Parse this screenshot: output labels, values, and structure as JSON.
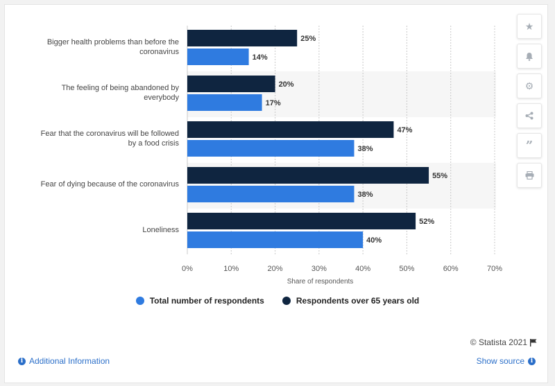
{
  "toolbar": {
    "icons": [
      "star-icon",
      "bell-icon",
      "gear-icon",
      "share-icon",
      "quote-icon",
      "print-icon"
    ]
  },
  "chart_data": {
    "type": "bar",
    "orientation": "horizontal",
    "categories": [
      [
        "Bigger health problems than before the",
        "coronavirus"
      ],
      [
        "The feeling of being abandoned by",
        "everybody"
      ],
      [
        "Fear that the coronavirus will be followed",
        "by a food crisis"
      ],
      [
        "Fear of dying because of the coronavirus"
      ],
      [
        "Loneliness"
      ]
    ],
    "series": [
      {
        "name": "Respondents over 65 years old",
        "color": "#0f2540",
        "values": [
          25,
          20,
          47,
          55,
          52
        ]
      },
      {
        "name": "Total number of respondents",
        "color": "#2f7be0",
        "values": [
          14,
          17,
          38,
          38,
          40
        ]
      }
    ],
    "value_suffix": "%",
    "xlabel": "Share of respondents",
    "ylabel": "",
    "xlim": [
      0,
      70
    ],
    "ticks": [
      "0%",
      "10%",
      "20%",
      "30%",
      "40%",
      "50%",
      "60%",
      "70%"
    ],
    "grid": true,
    "legend_position": "bottom"
  },
  "legend": {
    "total_label": "Total number of respondents",
    "total_color": "#2f7be0",
    "over65_label": "Respondents over 65 years old",
    "over65_color": "#0f2540"
  },
  "footer": {
    "credit": "© Statista 2021",
    "additional_info": "Additional Information",
    "show_source": "Show source"
  }
}
